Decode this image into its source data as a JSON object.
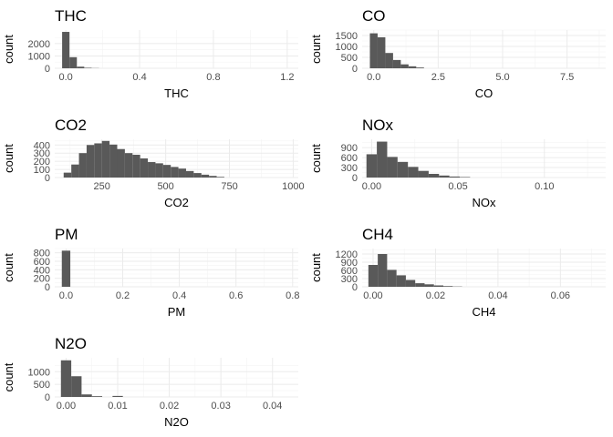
{
  "chart_data": [
    {
      "type": "bar",
      "title": "THC",
      "xlabel": "THC",
      "ylabel": "count",
      "xlim": [
        -0.06,
        1.26
      ],
      "ylim": [
        0,
        3100
      ],
      "xticks": [
        0.0,
        0.4,
        0.8,
        1.2
      ],
      "xtick_labels": [
        "0.0",
        "0.4",
        "0.8",
        "1.2"
      ],
      "yticks": [
        0,
        1000,
        2000
      ],
      "ytick_labels": [
        "0",
        "1000",
        "2000"
      ],
      "bins": [
        {
          "x0": -0.02,
          "x1": 0.02,
          "count": 2950
        },
        {
          "x0": 0.02,
          "x1": 0.06,
          "count": 900
        },
        {
          "x0": 0.06,
          "x1": 0.1,
          "count": 130
        },
        {
          "x0": 0.1,
          "x1": 0.14,
          "count": 40
        },
        {
          "x0": 0.14,
          "x1": 0.18,
          "count": 15
        }
      ]
    },
    {
      "type": "bar",
      "title": "CO",
      "xlabel": "CO",
      "ylabel": "count",
      "xlim": [
        -0.45,
        9.0
      ],
      "ylim": [
        0,
        1750
      ],
      "xticks": [
        0.0,
        2.5,
        5.0,
        7.5
      ],
      "xtick_labels": [
        "0.0",
        "2.5",
        "5.0",
        "7.5"
      ],
      "yticks": [
        0,
        500,
        1000,
        1500
      ],
      "ytick_labels": [
        "0",
        "500",
        "1000",
        "1500"
      ],
      "bins": [
        {
          "x0": -0.15,
          "x1": 0.15,
          "count": 1600
        },
        {
          "x0": 0.15,
          "x1": 0.45,
          "count": 1420
        },
        {
          "x0": 0.45,
          "x1": 0.75,
          "count": 700
        },
        {
          "x0": 0.75,
          "x1": 1.05,
          "count": 380
        },
        {
          "x0": 1.05,
          "x1": 1.35,
          "count": 180
        },
        {
          "x0": 1.35,
          "x1": 1.65,
          "count": 90
        },
        {
          "x0": 1.65,
          "x1": 1.95,
          "count": 35
        }
      ]
    },
    {
      "type": "bar",
      "title": "CO2",
      "xlabel": "CO2",
      "ylabel": "count",
      "xlim": [
        65,
        1020
      ],
      "ylim": [
        0,
        470
      ],
      "xticks": [
        250,
        500,
        750,
        1000
      ],
      "xtick_labels": [
        "250",
        "500",
        "750",
        "1000"
      ],
      "yticks": [
        0,
        100,
        200,
        300,
        400
      ],
      "ytick_labels": [
        "0",
        "100",
        "200",
        "300",
        "400"
      ],
      "bins": [
        {
          "x0": 100,
          "x1": 130,
          "count": 60
        },
        {
          "x0": 130,
          "x1": 160,
          "count": 160
        },
        {
          "x0": 160,
          "x1": 190,
          "count": 300
        },
        {
          "x0": 190,
          "x1": 220,
          "count": 400
        },
        {
          "x0": 220,
          "x1": 250,
          "count": 420
        },
        {
          "x0": 250,
          "x1": 280,
          "count": 450
        },
        {
          "x0": 280,
          "x1": 310,
          "count": 405
        },
        {
          "x0": 310,
          "x1": 340,
          "count": 350
        },
        {
          "x0": 340,
          "x1": 370,
          "count": 300
        },
        {
          "x0": 370,
          "x1": 400,
          "count": 280
        },
        {
          "x0": 400,
          "x1": 430,
          "count": 235
        },
        {
          "x0": 430,
          "x1": 460,
          "count": 190
        },
        {
          "x0": 460,
          "x1": 490,
          "count": 175
        },
        {
          "x0": 490,
          "x1": 520,
          "count": 155
        },
        {
          "x0": 520,
          "x1": 550,
          "count": 130
        },
        {
          "x0": 550,
          "x1": 580,
          "count": 110
        },
        {
          "x0": 580,
          "x1": 610,
          "count": 80
        },
        {
          "x0": 610,
          "x1": 640,
          "count": 55
        },
        {
          "x0": 640,
          "x1": 670,
          "count": 35
        },
        {
          "x0": 670,
          "x1": 700,
          "count": 20
        },
        {
          "x0": 700,
          "x1": 730,
          "count": 8
        }
      ]
    },
    {
      "type": "bar",
      "title": "NOx",
      "xlabel": "NOx",
      "ylabel": "count",
      "xlim": [
        -0.0055,
        0.1355
      ],
      "ylim": [
        0,
        1150
      ],
      "xticks": [
        0.0,
        0.05,
        0.1
      ],
      "xtick_labels": [
        "0.00",
        "0.05",
        "0.10"
      ],
      "yticks": [
        0,
        300,
        600,
        900
      ],
      "ytick_labels": [
        "0",
        "300",
        "600",
        "900"
      ],
      "bins": [
        {
          "x0": -0.003,
          "x1": 0.003,
          "count": 700
        },
        {
          "x0": 0.003,
          "x1": 0.009,
          "count": 1080
        },
        {
          "x0": 0.009,
          "x1": 0.015,
          "count": 620
        },
        {
          "x0": 0.015,
          "x1": 0.021,
          "count": 470
        },
        {
          "x0": 0.021,
          "x1": 0.027,
          "count": 320
        },
        {
          "x0": 0.027,
          "x1": 0.033,
          "count": 200
        },
        {
          "x0": 0.033,
          "x1": 0.039,
          "count": 110
        },
        {
          "x0": 0.039,
          "x1": 0.045,
          "count": 60
        },
        {
          "x0": 0.045,
          "x1": 0.051,
          "count": 30
        },
        {
          "x0": 0.051,
          "x1": 0.057,
          "count": 15
        }
      ]
    },
    {
      "type": "bar",
      "title": "PM",
      "xlabel": "PM",
      "ylabel": "count",
      "xlim": [
        -0.04,
        0.82
      ],
      "ylim": [
        0,
        900
      ],
      "xticks": [
        0.0,
        0.2,
        0.4,
        0.6,
        0.8
      ],
      "xtick_labels": [
        "0.0",
        "0.2",
        "0.4",
        "0.6",
        "0.8"
      ],
      "yticks": [
        0,
        200,
        400,
        600,
        800
      ],
      "ytick_labels": [
        "0",
        "200",
        "400",
        "600",
        "800"
      ],
      "bins": [
        {
          "x0": -0.015,
          "x1": 0.015,
          "count": 850
        }
      ]
    },
    {
      "type": "bar",
      "title": "CH4",
      "xlabel": "CH4",
      "ylabel": "count",
      "xlim": [
        -0.0035,
        0.0745
      ],
      "ylim": [
        0,
        1400
      ],
      "xticks": [
        0.0,
        0.02,
        0.04,
        0.06
      ],
      "xtick_labels": [
        "0.00",
        "0.02",
        "0.04",
        "0.06"
      ],
      "yticks": [
        0,
        300,
        600,
        900,
        1200
      ],
      "ytick_labels": [
        "0",
        "300",
        "600",
        "900",
        "1200"
      ],
      "bins": [
        {
          "x0": -0.0015,
          "x1": 0.0015,
          "count": 800
        },
        {
          "x0": 0.0015,
          "x1": 0.0045,
          "count": 1200
        },
        {
          "x0": 0.0045,
          "x1": 0.0075,
          "count": 620
        },
        {
          "x0": 0.0075,
          "x1": 0.0105,
          "count": 420
        },
        {
          "x0": 0.0105,
          "x1": 0.0135,
          "count": 250
        },
        {
          "x0": 0.0135,
          "x1": 0.0165,
          "count": 130
        },
        {
          "x0": 0.0165,
          "x1": 0.0195,
          "count": 90
        },
        {
          "x0": 0.0195,
          "x1": 0.0225,
          "count": 50
        },
        {
          "x0": 0.0225,
          "x1": 0.0255,
          "count": 25
        },
        {
          "x0": 0.0255,
          "x1": 0.0285,
          "count": 10
        }
      ]
    },
    {
      "type": "bar",
      "title": "N2O",
      "xlabel": "N2O",
      "ylabel": "count",
      "xlim": [
        -0.0022,
        0.045
      ],
      "ylim": [
        0,
        1550
      ],
      "xticks": [
        0.0,
        0.01,
        0.02,
        0.03,
        0.04
      ],
      "xtick_labels": [
        "0.00",
        "0.01",
        "0.02",
        "0.03",
        "0.04"
      ],
      "yticks": [
        0,
        500,
        1000
      ],
      "ytick_labels": [
        "0",
        "500",
        "1000"
      ],
      "bins": [
        {
          "x0": -0.001,
          "x1": 0.001,
          "count": 1450
        },
        {
          "x0": 0.001,
          "x1": 0.003,
          "count": 820
        },
        {
          "x0": 0.003,
          "x1": 0.005,
          "count": 100
        },
        {
          "x0": 0.005,
          "x1": 0.007,
          "count": 30
        },
        {
          "x0": 0.009,
          "x1": 0.011,
          "count": 40
        }
      ]
    }
  ]
}
